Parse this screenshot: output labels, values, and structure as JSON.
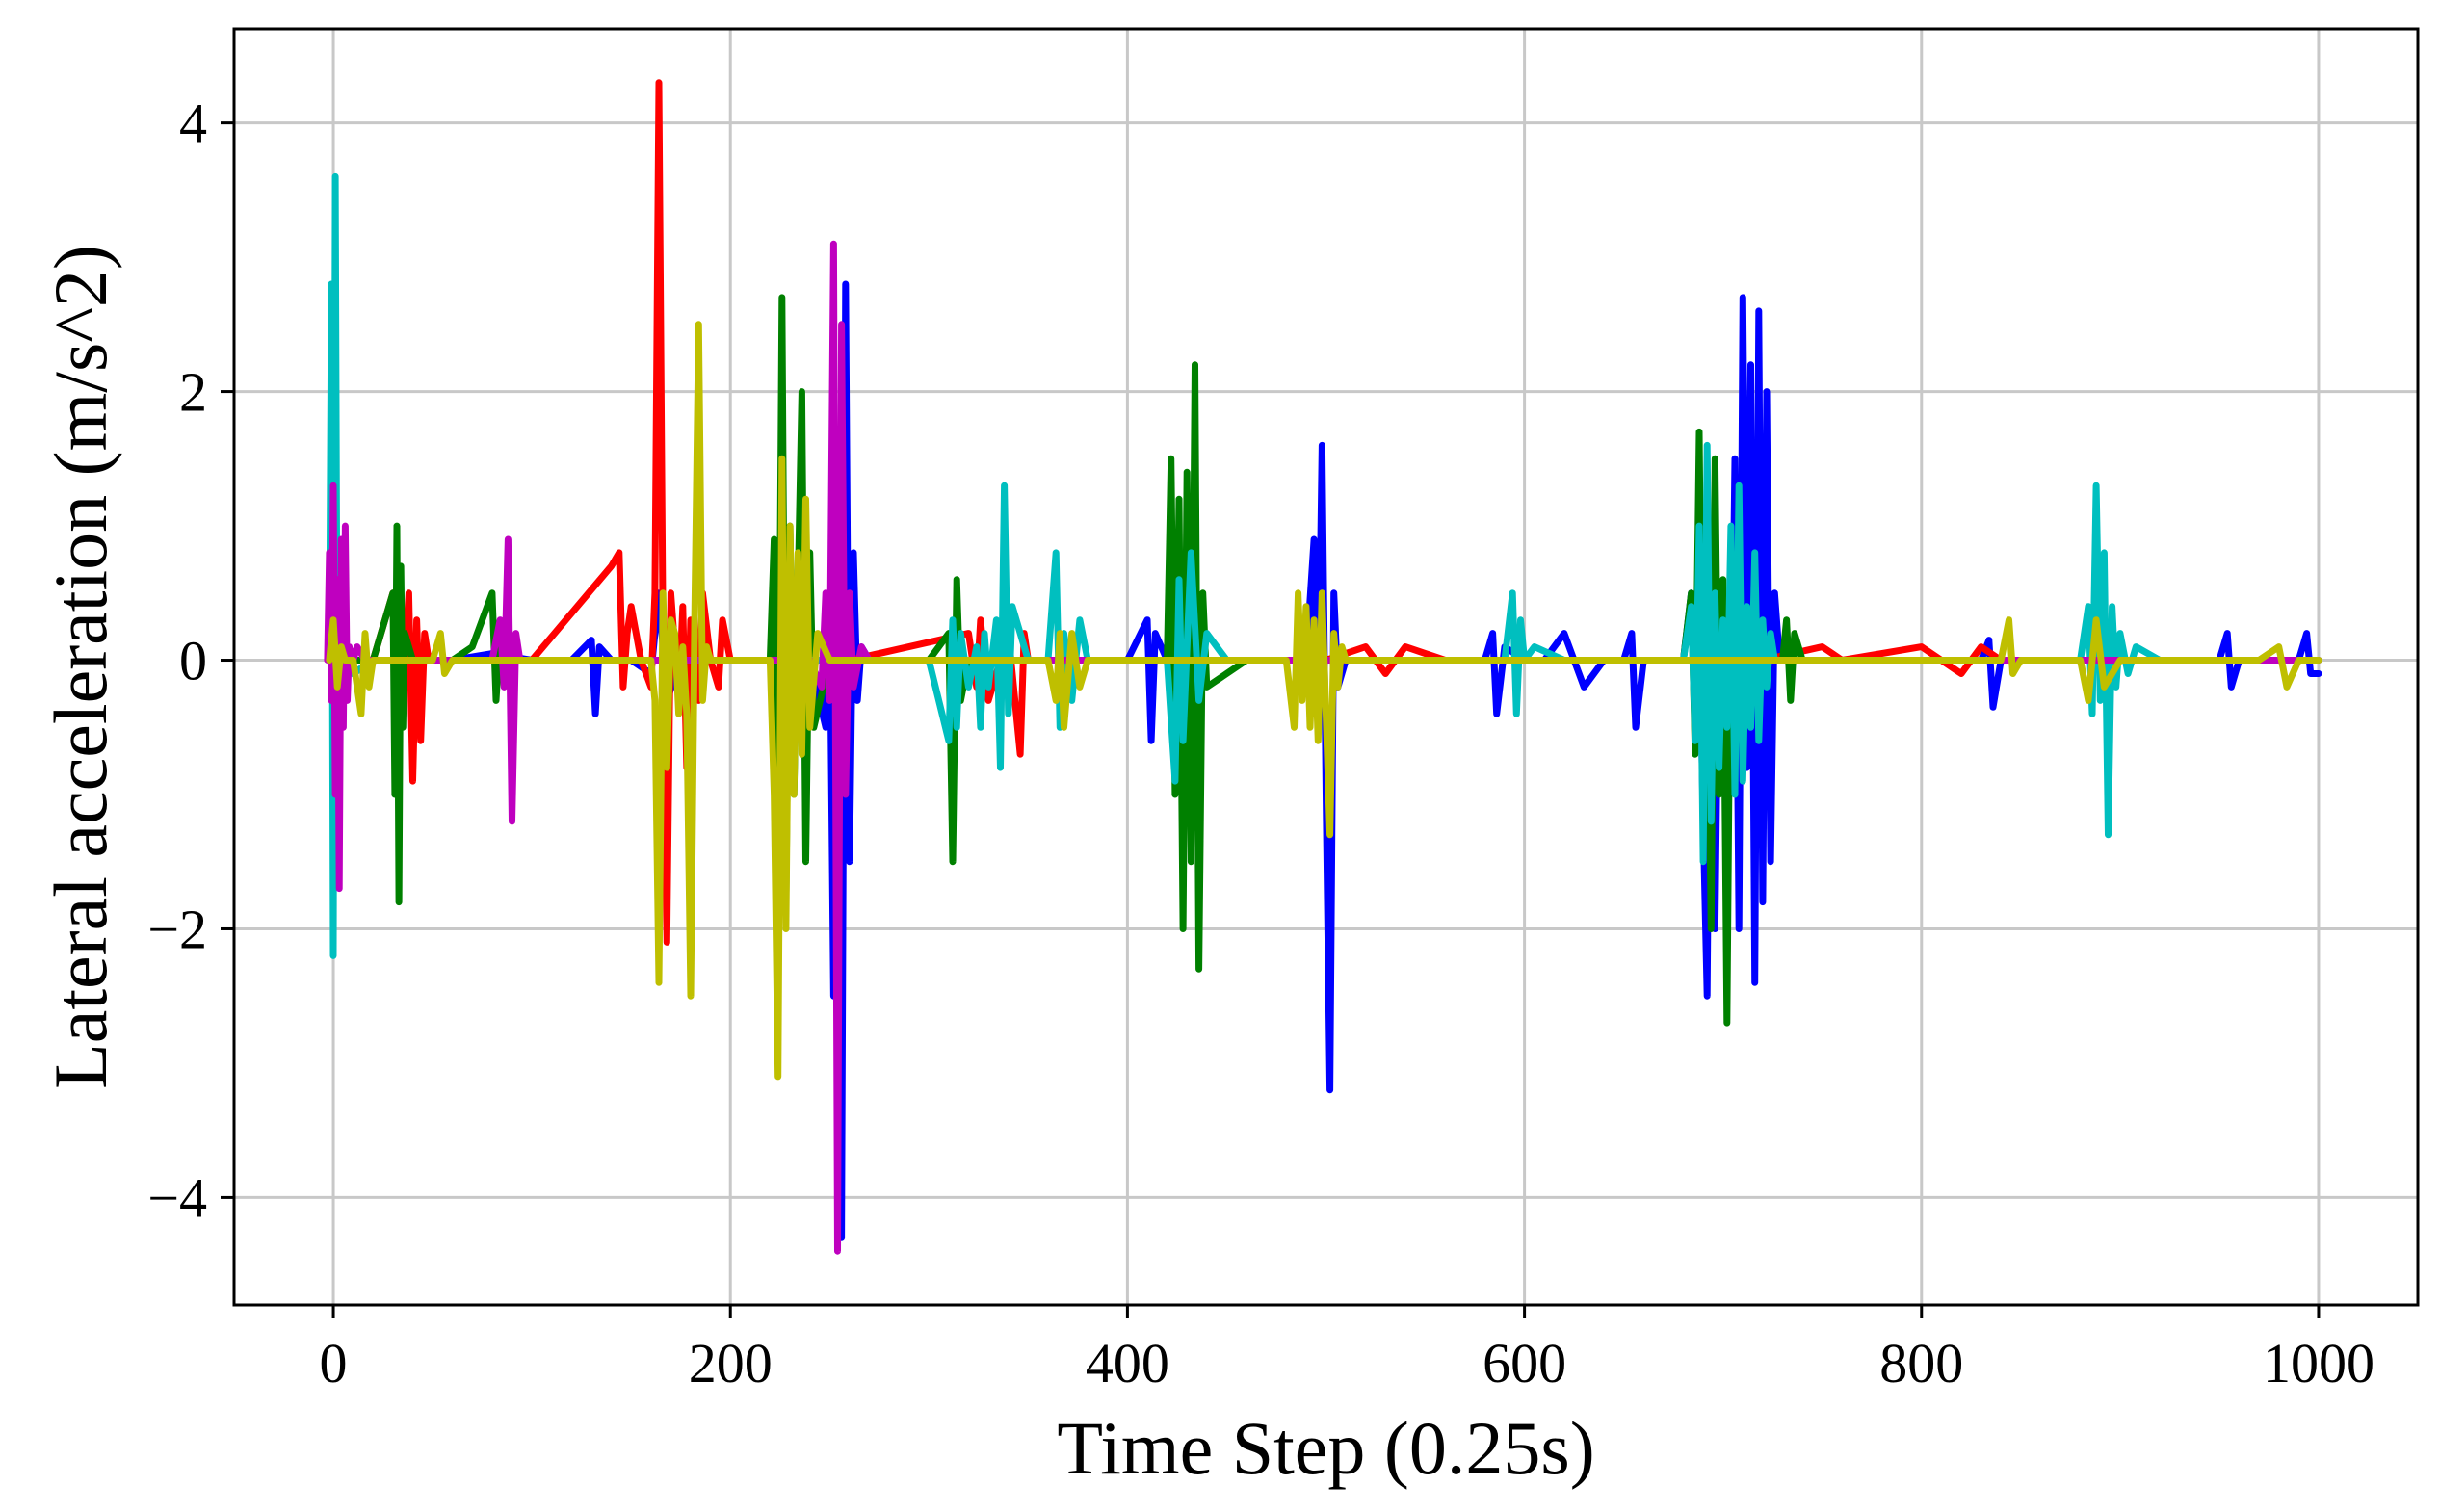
{
  "chart_data": {
    "type": "line",
    "title": "",
    "xlabel": "Time Step (0.25s)",
    "ylabel": "Lateral acceleration (m/s^2)",
    "xlim": [
      -50,
      1050
    ],
    "ylim": [
      -4.8,
      4.7
    ],
    "xticks": [
      0,
      200,
      400,
      600,
      800,
      1000
    ],
    "xtick_labels": [
      "0",
      "200",
      "400",
      "600",
      "800",
      "1000"
    ],
    "yticks": [
      -4,
      -2,
      0,
      2,
      4
    ],
    "ytick_labels": [
      "−4",
      "−2",
      "0",
      "2",
      "4"
    ],
    "grid": true,
    "legend": "none",
    "series": [
      {
        "color": "#0000ff",
        "x": [
          0,
          5,
          10,
          20,
          30,
          40,
          60,
          80,
          100,
          120,
          130,
          132,
          134,
          140,
          150,
          160,
          164,
          166,
          168,
          175,
          190,
          210,
          240,
          248,
          250,
          252,
          254,
          256,
          258,
          260,
          262,
          264,
          266,
          270,
          290,
          300,
          320,
          340,
          360,
          380,
          390,
          400,
          410,
          412,
          414,
          420,
          430,
          440,
          460,
          480,
          490,
          494,
          496,
          498,
          500,
          502,
          504,
          506,
          510,
          520,
          540,
          560,
          580,
          584,
          586,
          590,
          600,
          610,
          620,
          630,
          640,
          650,
          654,
          656,
          660,
          680,
          684,
          686,
          688,
          690,
          692,
          694,
          696,
          698,
          700,
          702,
          704,
          706,
          708,
          710,
          712,
          714,
          716,
          718,
          720,
          722,
          724,
          726,
          728,
          730,
          740,
          760,
          780,
          800,
          820,
          830,
          834,
          836,
          840,
          860,
          880,
          900,
          920,
          940,
          950,
          954,
          956,
          960,
          980,
          990,
          994,
          996,
          1000
        ],
        "y": [
          0,
          0,
          -0.1,
          0,
          0,
          0,
          0,
          0.05,
          0,
          0,
          0.15,
          -0.4,
          0.1,
          0,
          0,
          -0.1,
          0.5,
          0.1,
          -0.3,
          0,
          0,
          0,
          0,
          -0.5,
          0.5,
          -2.5,
          1.2,
          -4.3,
          2.8,
          -1.5,
          0.8,
          -0.3,
          0.1,
          0,
          0,
          0,
          0,
          0,
          0,
          0,
          0,
          0,
          0.3,
          -0.6,
          0.2,
          0,
          0,
          0,
          0,
          0,
          0,
          0.9,
          -0.5,
          1.6,
          -1.0,
          -3.2,
          0.5,
          -0.2,
          0,
          0,
          0,
          0,
          0,
          0.2,
          -0.4,
          0.1,
          0,
          0,
          0.2,
          -0.2,
          0,
          0,
          0.2,
          -0.5,
          0,
          0,
          0.5,
          -0.3,
          0.4,
          -1.2,
          -2.5,
          1.0,
          -2.0,
          0.5,
          -0.5,
          0.3,
          -0.8,
          1.5,
          -2.0,
          2.7,
          -0.8,
          2.2,
          -2.4,
          2.6,
          -1.8,
          2.0,
          -1.5,
          0.5,
          0.1,
          0,
          0,
          0,
          0,
          0,
          0,
          0,
          0.15,
          -0.35,
          0,
          0,
          0,
          0,
          0,
          0,
          0,
          0.2,
          -0.2,
          0,
          0,
          0,
          0.2,
          -0.1,
          -0.1
        ]
      },
      {
        "color": "#ff0000",
        "x": [
          0,
          5,
          10,
          20,
          30,
          35,
          38,
          40,
          42,
          44,
          46,
          48,
          50,
          60,
          100,
          140,
          144,
          146,
          148,
          150,
          155,
          160,
          162,
          164,
          166,
          168,
          170,
          174,
          176,
          178,
          180,
          184,
          186,
          190,
          194,
          196,
          200,
          260,
          320,
          324,
          326,
          330,
          340,
          346,
          348,
          350,
          400,
          500,
          520,
          530,
          540,
          560,
          600,
          650,
          700,
          720,
          750,
          760,
          800,
          820,
          830,
          840,
          860,
          900,
          950,
          1000
        ],
        "y": [
          0,
          0,
          0,
          0,
          0.5,
          -0.3,
          0.5,
          -0.9,
          0.3,
          -0.6,
          0.2,
          0,
          0,
          0,
          0,
          0.7,
          0.8,
          -0.2,
          0.2,
          0.4,
          0,
          -0.2,
          0.5,
          4.3,
          0.2,
          -2.1,
          0.5,
          -0.3,
          0.4,
          -0.8,
          0.3,
          -0.3,
          0.5,
          0,
          -0.2,
          0.3,
          0,
          0,
          0.2,
          -0.2,
          0.3,
          -0.3,
          0.2,
          -0.7,
          0.2,
          0,
          0,
          0,
          0.1,
          -0.1,
          0.1,
          0,
          0,
          0,
          0,
          0,
          0.1,
          0,
          0.1,
          -0.1,
          0.1,
          0,
          0,
          0,
          0,
          0
        ]
      },
      {
        "color": "#008000",
        "x": [
          0,
          20,
          30,
          31,
          32,
          33,
          34,
          35,
          36,
          40,
          50,
          60,
          70,
          80,
          82,
          84,
          86,
          90,
          100,
          180,
          200,
          220,
          222,
          224,
          226,
          228,
          230,
          232,
          234,
          236,
          238,
          240,
          242,
          250,
          300,
          310,
          312,
          314,
          316,
          320,
          340,
          400,
          420,
          422,
          424,
          426,
          428,
          430,
          432,
          434,
          436,
          438,
          440,
          460,
          680,
          684,
          686,
          688,
          690,
          692,
          694,
          696,
          698,
          700,
          702,
          704,
          706,
          708,
          710,
          720,
          730,
          732,
          734,
          736,
          740,
          760,
          1000
        ],
        "y": [
          0,
          0,
          0.5,
          -1.0,
          1.0,
          -1.8,
          0.7,
          -0.5,
          0.2,
          0,
          0,
          0,
          0.1,
          0.5,
          -0.3,
          0.2,
          0,
          0,
          0,
          0,
          0,
          0,
          0.9,
          -1.6,
          2.7,
          -1.8,
          1.0,
          -1.0,
          0.5,
          2.0,
          -1.5,
          0.8,
          -0.5,
          0,
          0,
          0.2,
          -1.5,
          0.6,
          -0.3,
          0,
          0,
          0,
          0,
          1.5,
          -1.0,
          1.2,
          -2.0,
          1.4,
          -1.5,
          2.2,
          -2.3,
          0.5,
          -0.2,
          0,
          0,
          0.5,
          -0.7,
          1.7,
          -1.2,
          0.5,
          -2.0,
          1.5,
          -1.0,
          0.6,
          -2.7,
          0.8,
          -0.2,
          0.2,
          0,
          0,
          0,
          0.3,
          -0.3,
          0.2,
          0,
          0,
          0
        ]
      },
      {
        "color": "#00bfbf",
        "x": [
          -2,
          -1,
          0,
          1,
          2,
          3,
          4,
          6,
          8,
          10,
          20,
          100,
          300,
          310,
          312,
          314,
          316,
          320,
          324,
          326,
          328,
          330,
          334,
          336,
          338,
          340,
          342,
          350,
          360,
          364,
          366,
          368,
          372,
          376,
          380,
          400,
          420,
          424,
          426,
          428,
          432,
          436,
          440,
          450,
          500,
          590,
          594,
          596,
          598,
          600,
          605,
          620,
          680,
          684,
          686,
          688,
          690,
          692,
          694,
          696,
          698,
          700,
          702,
          704,
          706,
          708,
          710,
          712,
          714,
          716,
          718,
          720,
          722,
          724,
          726,
          730,
          740,
          880,
          884,
          886,
          888,
          890,
          892,
          894,
          896,
          898,
          900,
          904,
          908,
          920,
          1000
        ],
        "y": [
          0,
          2.8,
          -2.2,
          3.6,
          -0.5,
          0.3,
          -0.2,
          0.1,
          0,
          -0.1,
          0,
          0,
          0,
          -0.6,
          0.3,
          -0.5,
          0.2,
          -0.2,
          0.1,
          -0.5,
          0.2,
          -0.2,
          0.3,
          -0.8,
          1.3,
          -0.4,
          0.4,
          0,
          0,
          0.8,
          -0.5,
          0.2,
          -0.3,
          0.3,
          0,
          0,
          0,
          -0.9,
          0.6,
          -0.6,
          0.8,
          -0.3,
          0.2,
          0,
          0,
          0,
          0.5,
          -0.4,
          0.3,
          0,
          0.1,
          0,
          0,
          0.4,
          -0.6,
          1.0,
          -1.5,
          1.6,
          -1.2,
          0.5,
          -0.8,
          0.3,
          -0.5,
          1.0,
          -1.0,
          1.3,
          -0.9,
          0.4,
          -0.5,
          0.8,
          -0.6,
          0.3,
          -0.2,
          0.2,
          0,
          0,
          0,
          0,
          0.4,
          -0.4,
          1.3,
          -0.3,
          0.8,
          -1.3,
          0.4,
          -0.2,
          0.2,
          -0.1,
          0.1,
          0,
          0
        ]
      },
      {
        "color": "#bf00bf",
        "x": [
          -3,
          -2,
          -1,
          0,
          1,
          2,
          3,
          4,
          5,
          6,
          7,
          8,
          10,
          12,
          16,
          20,
          40,
          80,
          84,
          86,
          88,
          90,
          92,
          94,
          100,
          240,
          246,
          248,
          250,
          252,
          254,
          256,
          258,
          260,
          262,
          266,
          270,
          300,
          1000
        ],
        "y": [
          0,
          0.8,
          -0.3,
          1.3,
          -1.0,
          0.6,
          -1.7,
          0.9,
          -0.5,
          1.0,
          -0.3,
          0.1,
          0,
          0.1,
          0,
          0,
          0,
          0,
          0.3,
          -0.2,
          0.9,
          -1.2,
          0.2,
          0,
          0,
          0,
          -0.2,
          0.5,
          -0.3,
          3.1,
          -4.4,
          2.5,
          -1.0,
          0.5,
          -0.2,
          0.1,
          0,
          0,
          0
        ]
      },
      {
        "color": "#bfbf00",
        "x": [
          -2,
          0,
          2,
          4,
          6,
          10,
          14,
          16,
          18,
          20,
          30,
          50,
          54,
          56,
          60,
          100,
          160,
          162,
          164,
          166,
          168,
          170,
          172,
          174,
          176,
          178,
          180,
          182,
          184,
          186,
          188,
          190,
          200,
          220,
          222,
          224,
          226,
          228,
          230,
          232,
          234,
          236,
          238,
          240,
          244,
          250,
          300,
          360,
          364,
          366,
          368,
          372,
          376,
          380,
          400,
          480,
          484,
          486,
          488,
          490,
          492,
          494,
          496,
          498,
          500,
          502,
          504,
          506,
          508,
          510,
          520,
          530,
          540,
          560,
          600,
          620,
          640,
          700,
          800,
          840,
          844,
          846,
          850,
          880,
          884,
          888,
          892,
          900,
          950,
          970,
          980,
          984,
          990,
          1000
        ],
        "y": [
          0,
          0.3,
          -0.2,
          0.1,
          0,
          0,
          -0.4,
          0.2,
          -0.2,
          0,
          0,
          0,
          0.2,
          -0.1,
          0,
          0,
          0,
          -0.3,
          -2.4,
          0.5,
          -0.8,
          0.3,
          0.2,
          -0.4,
          0.1,
          -0.4,
          -2.5,
          0.3,
          2.5,
          -0.3,
          0.1,
          0,
          0,
          0,
          -1.0,
          -3.1,
          1.5,
          -2.0,
          1.0,
          -1.0,
          0.8,
          -0.7,
          1.2,
          -0.5,
          0.2,
          0,
          0,
          0,
          -0.3,
          0.2,
          -0.5,
          0.2,
          -0.2,
          0,
          0,
          0,
          -0.5,
          0.5,
          -0.3,
          0.4,
          -0.5,
          0.3,
          -0.6,
          0.5,
          -0.4,
          -1.3,
          0.2,
          -0.2,
          0.1,
          0,
          0,
          0,
          0,
          0,
          0,
          0,
          0,
          0,
          0,
          0,
          0.3,
          -0.1,
          0,
          0,
          -0.3,
          0.3,
          -0.2,
          0,
          0,
          0,
          0.1,
          -0.2,
          0,
          0
        ]
      }
    ]
  }
}
